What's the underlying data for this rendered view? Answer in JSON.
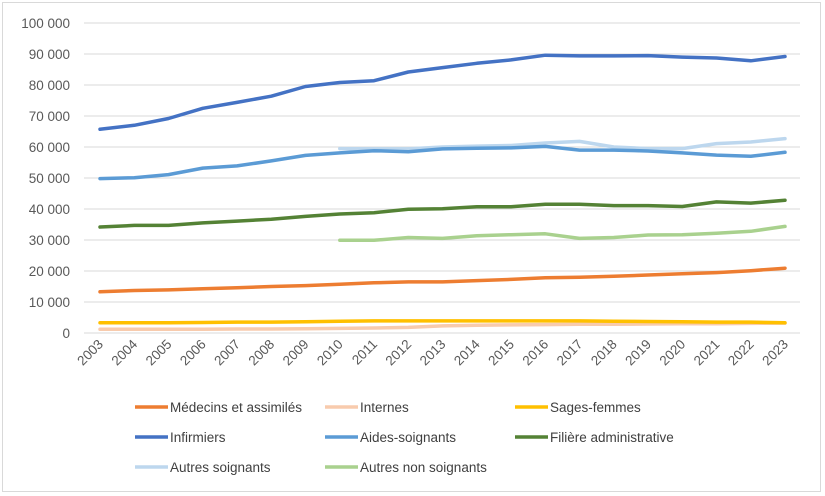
{
  "chart_data": {
    "type": "line",
    "title": "",
    "xlabel": "",
    "ylabel": "",
    "ylim": [
      0,
      100000
    ],
    "yticks": [
      0,
      10000,
      20000,
      30000,
      40000,
      50000,
      60000,
      70000,
      80000,
      90000,
      100000
    ],
    "ytick_labels": [
      "0",
      "10 000",
      "20 000",
      "30 000",
      "40 000",
      "50 000",
      "60 000",
      "70 000",
      "80 000",
      "90 000",
      "100 000"
    ],
    "grid": true,
    "legend_position": "bottom",
    "x": [
      "2003",
      "2004",
      "2005",
      "2006",
      "2007",
      "2008",
      "2009",
      "2010",
      "2011",
      "2012",
      "2013",
      "2014",
      "2015",
      "2016",
      "2017",
      "2018",
      "2019",
      "2020",
      "2021",
      "2022",
      "2023"
    ],
    "series": [
      {
        "name": "Médecins et assimilés",
        "color": "#ED7D31",
        "values": [
          13300,
          13700,
          13900,
          14300,
          14600,
          15000,
          15300,
          15700,
          16200,
          16500,
          16500,
          16900,
          17300,
          17800,
          18000,
          18300,
          18700,
          19100,
          19500,
          20100,
          20900
        ]
      },
      {
        "name": "Internes",
        "color": "#F8CBAD",
        "values": [
          1200,
          1200,
          1200,
          1200,
          1300,
          1300,
          1400,
          1500,
          1600,
          1800,
          2300,
          2500,
          2600,
          2700,
          2800,
          2800,
          2900,
          3000,
          3000,
          3100,
          3200
        ]
      },
      {
        "name": "Sages-femmes",
        "color": "#FFC000",
        "values": [
          3300,
          3300,
          3300,
          3400,
          3500,
          3500,
          3600,
          3800,
          3900,
          3900,
          3900,
          3900,
          3900,
          3900,
          3900,
          3800,
          3700,
          3600,
          3500,
          3500,
          3300
        ]
      },
      {
        "name": "Infirmiers",
        "color": "#4472C4",
        "values": [
          65700,
          67000,
          69200,
          72500,
          74400,
          76400,
          79500,
          80800,
          81400,
          84200,
          85600,
          87000,
          88100,
          89600,
          89400,
          89400,
          89500,
          89000,
          88700,
          87800,
          89200
        ]
      },
      {
        "name": "Aides-soignants",
        "color": "#5B9BD5",
        "values": [
          49800,
          50100,
          51100,
          53200,
          53900,
          55500,
          57300,
          58100,
          58800,
          58500,
          59400,
          59600,
          59700,
          60200,
          59000,
          59000,
          58700,
          58100,
          57400,
          57000,
          58300
        ]
      },
      {
        "name": "Filière administrative",
        "color": "#548235",
        "values": [
          34200,
          34700,
          34700,
          35500,
          36100,
          36700,
          37600,
          38400,
          38800,
          39900,
          40100,
          40700,
          40700,
          41500,
          41500,
          41100,
          41100,
          40800,
          42300,
          41900,
          42800
        ]
      },
      {
        "name": "Autres soignants",
        "color": "#BDD7EE",
        "values": [
          null,
          null,
          null,
          null,
          null,
          null,
          null,
          59500,
          59400,
          59400,
          60000,
          60300,
          60500,
          61300,
          61800,
          60000,
          59500,
          59500,
          61100,
          61600,
          62700
        ]
      },
      {
        "name": "Autres non soignants",
        "color": "#A9D18E",
        "values": [
          null,
          null,
          null,
          null,
          null,
          null,
          null,
          29900,
          29900,
          30800,
          30500,
          31400,
          31700,
          32000,
          30500,
          30800,
          31600,
          31700,
          32200,
          32800,
          34400
        ]
      }
    ]
  }
}
